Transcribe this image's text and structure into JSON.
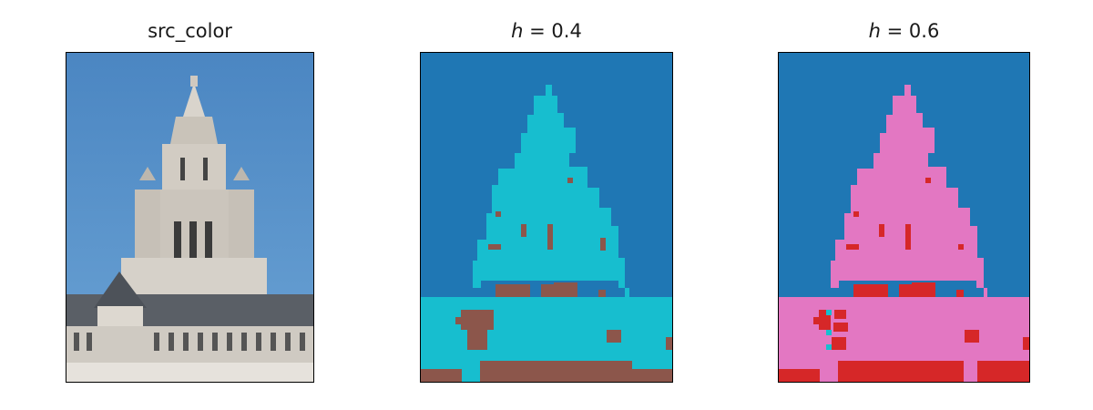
{
  "panels": [
    {
      "title": "src_color"
    },
    {
      "title_var": "h",
      "title_rest": " = 0.4"
    },
    {
      "title_var": "h",
      "title_rest": " = 0.6"
    }
  ],
  "colors": {
    "sky_photo_top": "#4f8cc6",
    "sky_photo_bottom": "#6aa0d0",
    "seg_sky": "#1f77b4",
    "seg_cyan": "#17becf",
    "seg_brown": "#8c564b",
    "seg_pink": "#e377c2",
    "seg_red": "#d62728"
  }
}
